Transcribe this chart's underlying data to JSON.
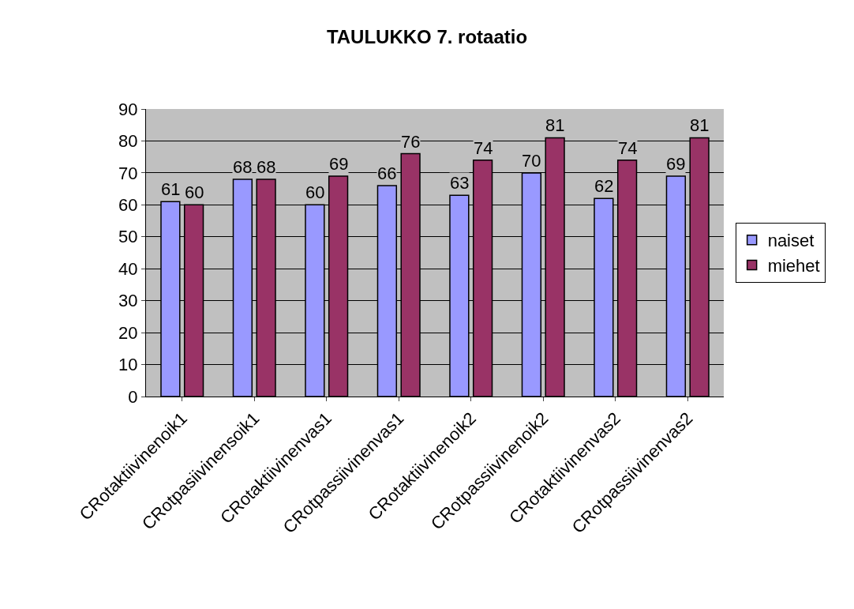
{
  "chart_data": {
    "type": "bar",
    "title": "TAULUKKO 7. rotaatio",
    "categories": [
      "CRotaktiivinenoik1",
      "CRotpasiivinensoik1",
      "CRotaktiivinenvas1",
      "CRotpassiivinenvas1",
      "CRotaktiivinenoik2",
      "CRotpassiivinenoik2",
      "CRotaktiivinenvas2",
      "CRotpassiivinenvas2"
    ],
    "series": [
      {
        "name": "naiset",
        "color": "#9999ff",
        "values": [
          61,
          68,
          60,
          66,
          63,
          70,
          62,
          69
        ]
      },
      {
        "name": "miehet",
        "color": "#993366",
        "values": [
          60,
          68,
          69,
          76,
          74,
          81,
          74,
          81
        ]
      }
    ],
    "ylim": [
      0,
      90
    ],
    "yticks": [
      0,
      10,
      20,
      30,
      40,
      50,
      60,
      70,
      80,
      90
    ],
    "grid": "y",
    "legend": "right",
    "data_labels": true
  }
}
